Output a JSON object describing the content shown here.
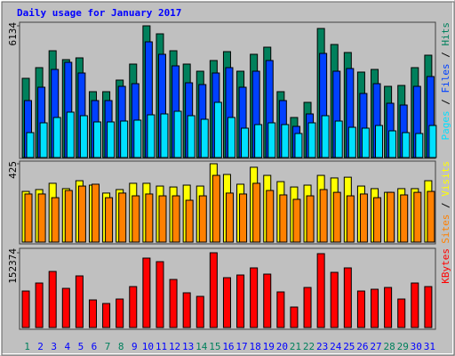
{
  "chart_data": [
    {
      "type": "bar",
      "title": "Daily usage for January 2017",
      "ylim": [
        0,
        6134
      ],
      "yticks": [
        6134
      ],
      "legend_separator": " / ",
      "series": [
        {
          "name": "Pages",
          "color": "#00e0ff",
          "values": [
            1160,
            1616,
            1865,
            2114,
            1948,
            1658,
            1658,
            1699,
            1741,
            1989,
            2031,
            2155,
            1948,
            1782,
            2570,
            1865,
            1368,
            1534,
            1616,
            1534,
            1119,
            1616,
            1948,
            1699,
            1409,
            1368,
            1492,
            1243,
            1160,
            1119,
            1492
          ]
        },
        {
          "name": "Files",
          "color": "#0040ff",
          "values": [
            2653,
            3274,
            4103,
            4435,
            3937,
            2653,
            2653,
            3316,
            3440,
            5388,
            4808,
            4269,
            3481,
            3398,
            3937,
            4186,
            3274,
            4020,
            4518,
            2653,
            1451,
            2031,
            4849,
            4020,
            4145,
            2984,
            3440,
            2528,
            2445,
            3316,
            3772
          ]
        },
        {
          "name": "Hits",
          "color": "#00805c",
          "values": [
            3689,
            4186,
            4973,
            4559,
            4642,
            3067,
            3067,
            3606,
            4352,
            6134,
            5761,
            4973,
            4352,
            4020,
            4518,
            4932,
            4020,
            4808,
            5139,
            3067,
            1865,
            2570,
            6010,
            5264,
            4891,
            3979,
            4103,
            3316,
            3357,
            4186,
            4766
          ]
        }
      ]
    },
    {
      "type": "bar",
      "ylim": [
        0,
        425
      ],
      "yticks": [
        425
      ],
      "legend_separator": " / ",
      "series": [
        {
          "name": "Sites",
          "color": "#ff8000",
          "values": [
            261,
            261,
            241,
            280,
            304,
            314,
            241,
            266,
            251,
            261,
            251,
            251,
            227,
            251,
            362,
            266,
            261,
            319,
            280,
            256,
            232,
            251,
            285,
            270,
            251,
            261,
            241,
            270,
            256,
            270,
            275
          ]
        },
        {
          "name": "Visits",
          "color": "#ffff00",
          "values": [
            275,
            285,
            319,
            290,
            333,
            309,
            266,
            285,
            319,
            319,
            304,
            299,
            309,
            304,
            425,
            367,
            314,
            406,
            362,
            328,
            299,
            309,
            362,
            348,
            352,
            304,
            290,
            270,
            290,
            290,
            333
          ]
        }
      ]
    },
    {
      "type": "bar",
      "ylim": [
        0,
        152374
      ],
      "yticks": [
        152374
      ],
      "categories": [
        "1",
        "2",
        "3",
        "4",
        "5",
        "6",
        "7",
        "8",
        "9",
        "10",
        "11",
        "12",
        "13",
        "14",
        "15",
        "16",
        "17",
        "18",
        "19",
        "20",
        "21",
        "22",
        "23",
        "24",
        "25",
        "26",
        "27",
        "28",
        "29",
        "30",
        "31"
      ],
      "category_colors": [
        "#00805c",
        "#0000ff",
        "#0000ff",
        "#0000ff",
        "#0000ff",
        "#0000ff",
        "#00805c",
        "#00805c",
        "#0000ff",
        "#0000ff",
        "#0000ff",
        "#0000ff",
        "#0000ff",
        "#00805c",
        "#00805c",
        "#0000ff",
        "#0000ff",
        "#0000ff",
        "#0000ff",
        "#0000ff",
        "#00805c",
        "#00805c",
        "#0000ff",
        "#0000ff",
        "#0000ff",
        "#0000ff",
        "#0000ff",
        "#00805c",
        "#00805c",
        "#0000ff",
        "#0000ff"
      ],
      "series": [
        {
          "name": "KBytes",
          "color": "#ff0000",
          "values": [
            74372,
            90699,
            114281,
            79814,
            105211,
            56233,
            48977,
            58047,
            83443,
            141490,
            134234,
            97955,
            70744,
            63489,
            152374,
            101583,
            107025,
            121537,
            108839,
            72558,
            41721,
            81628,
            150560,
            112467,
            121537,
            74372,
            78000,
            81628,
            58047,
            90699,
            83443
          ]
        }
      ]
    }
  ]
}
